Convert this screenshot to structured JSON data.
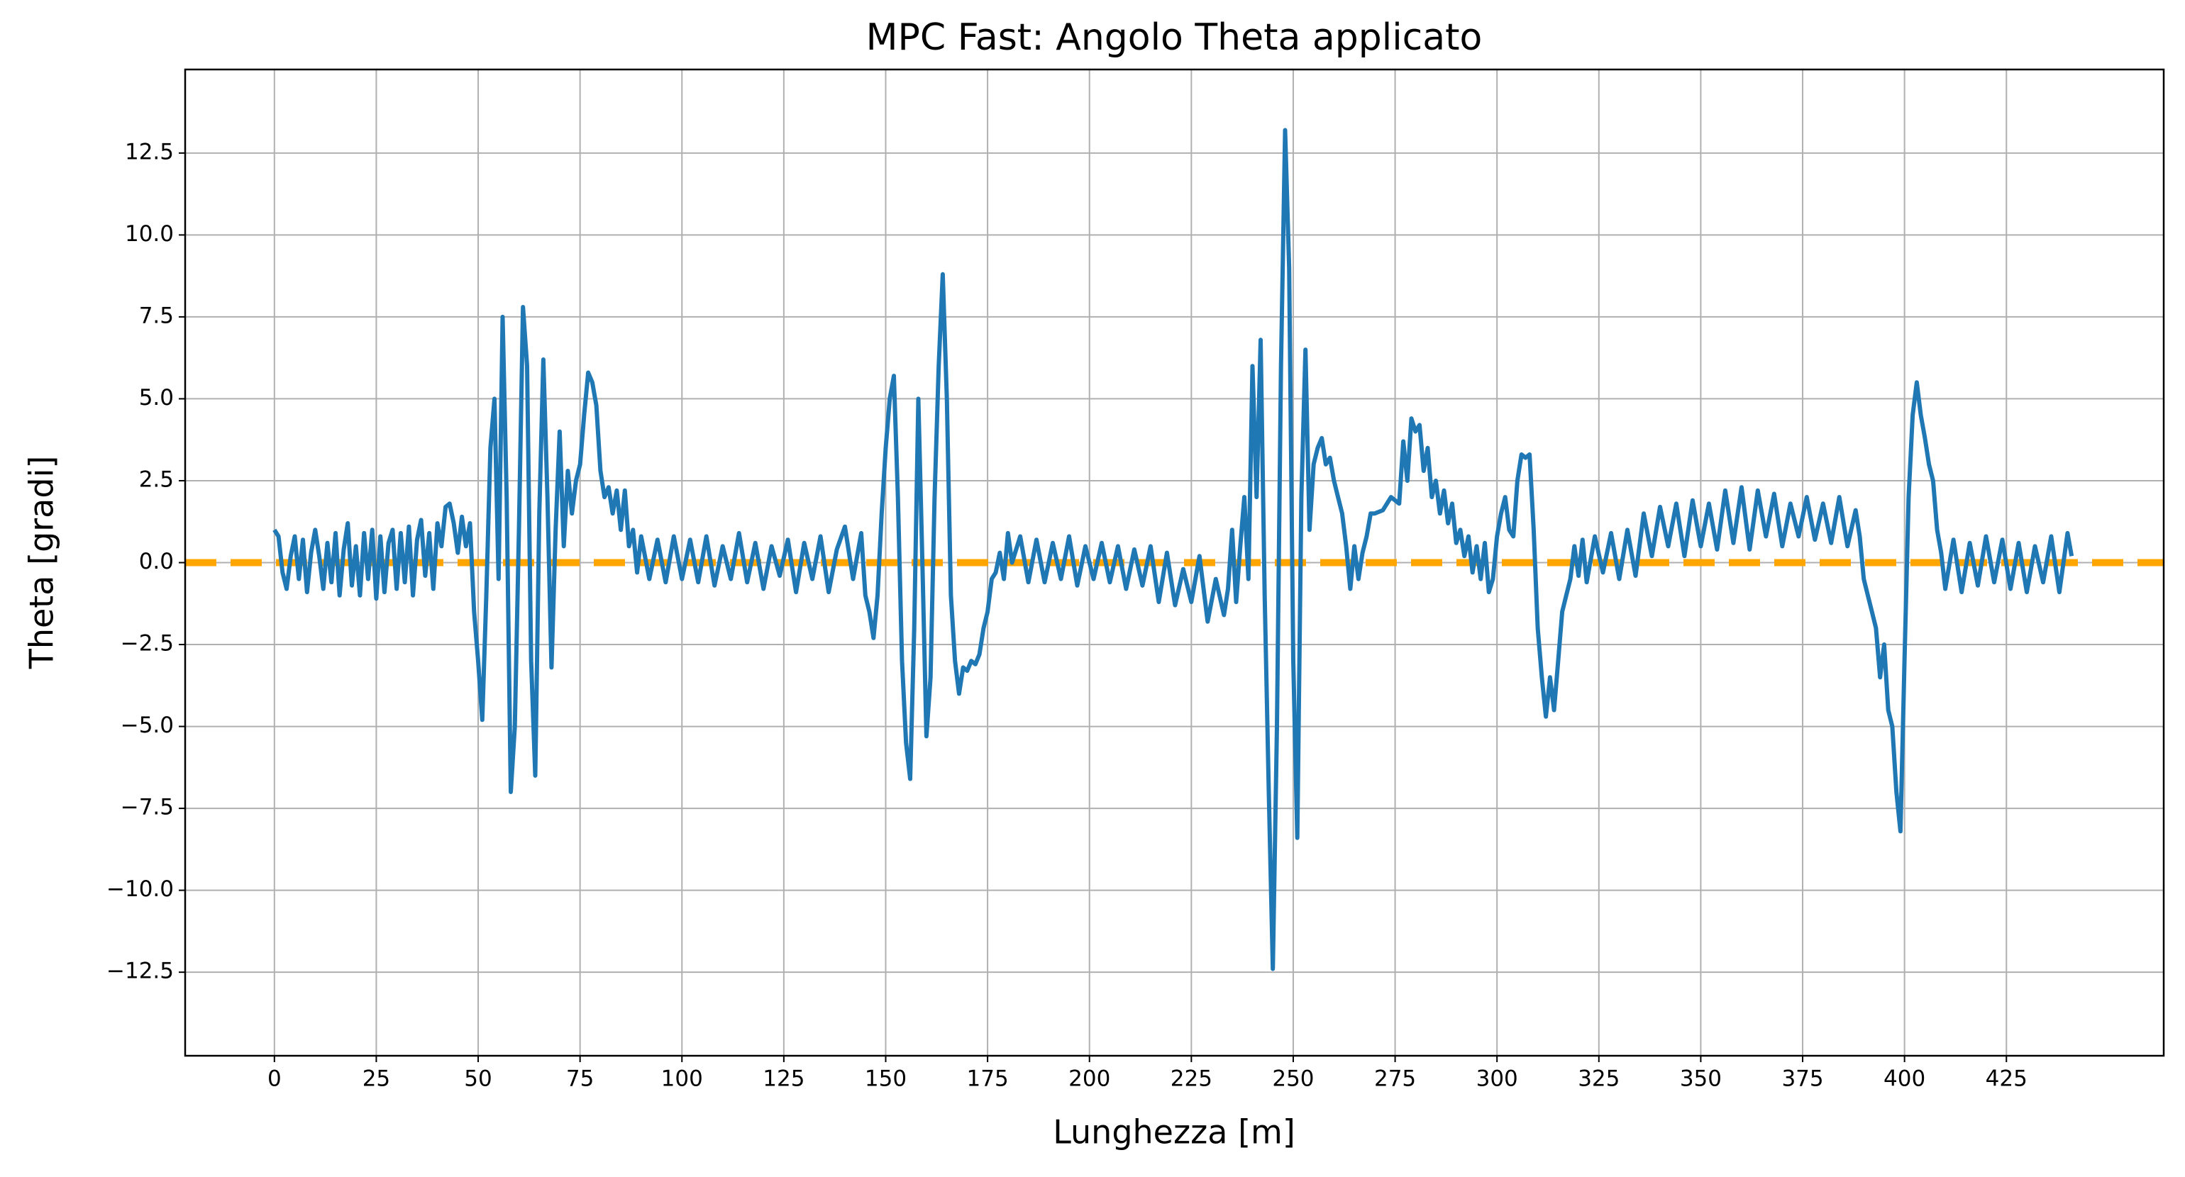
{
  "chart_data": {
    "type": "line",
    "title": "MPC Fast: Angolo Theta applicato",
    "xlabel": "Lunghezza [m]",
    "ylabel": "Theta [gradi]",
    "x": [
      0,
      1,
      2,
      3,
      4,
      5,
      6,
      7,
      8,
      9,
      10,
      11,
      12,
      13,
      14,
      15,
      16,
      17,
      18,
      19,
      20,
      21,
      22,
      23,
      24,
      25,
      26,
      27,
      28,
      29,
      30,
      31,
      32,
      33,
      34,
      35,
      36,
      37,
      38,
      39,
      40,
      41,
      42,
      43,
      44,
      45,
      46,
      47,
      48,
      49,
      50,
      51,
      52,
      53,
      54,
      55,
      56,
      57,
      58,
      59,
      60,
      61,
      62,
      63,
      64,
      65,
      66,
      67,
      68,
      69,
      70,
      71,
      72,
      73,
      74,
      75,
      76,
      77,
      78,
      79,
      80,
      81,
      82,
      83,
      84,
      85,
      86,
      87,
      88,
      89,
      90,
      92,
      94,
      96,
      98,
      100,
      102,
      104,
      106,
      108,
      110,
      112,
      114,
      116,
      118,
      120,
      122,
      124,
      126,
      128,
      130,
      132,
      134,
      136,
      138,
      140,
      142,
      144,
      145,
      146,
      147,
      148,
      149,
      150,
      151,
      152,
      153,
      154,
      155,
      156,
      157,
      158,
      159,
      160,
      161,
      162,
      163,
      164,
      165,
      166,
      167,
      168,
      169,
      170,
      171,
      172,
      173,
      174,
      175,
      176,
      177,
      178,
      179,
      180,
      181,
      183,
      185,
      187,
      189,
      191,
      193,
      195,
      197,
      199,
      201,
      203,
      205,
      207,
      209,
      211,
      213,
      215,
      217,
      219,
      221,
      223,
      225,
      227,
      229,
      231,
      233,
      234,
      235,
      236,
      237,
      238,
      239,
      240,
      241,
      242,
      243,
      244,
      245,
      246,
      247,
      248,
      249,
      250,
      251,
      252,
      253,
      254,
      255,
      256,
      257,
      258,
      259,
      260,
      261,
      262,
      263,
      264,
      265,
      266,
      267,
      268,
      269,
      270,
      272,
      274,
      276,
      277,
      278,
      279,
      280,
      281,
      282,
      283,
      284,
      285,
      286,
      287,
      288,
      289,
      290,
      291,
      292,
      293,
      294,
      295,
      296,
      297,
      298,
      299,
      300,
      301,
      302,
      303,
      304,
      305,
      306,
      307,
      308,
      309,
      310,
      311,
      312,
      313,
      314,
      315,
      316,
      317,
      318,
      319,
      320,
      321,
      322,
      324,
      326,
      328,
      330,
      332,
      334,
      336,
      338,
      340,
      342,
      344,
      346,
      348,
      350,
      352,
      354,
      356,
      358,
      360,
      362,
      364,
      366,
      368,
      370,
      372,
      374,
      376,
      378,
      380,
      382,
      384,
      386,
      388,
      389,
      390,
      391,
      392,
      393,
      394,
      395,
      396,
      397,
      398,
      399,
      400,
      401,
      402,
      403,
      404,
      405,
      406,
      407,
      408,
      409,
      410,
      412,
      414,
      416,
      418,
      420,
      422,
      424,
      426,
      428,
      430,
      432,
      434,
      436,
      438,
      440,
      441
    ],
    "series": [
      {
        "color": "#1f77b4",
        "values": [
          1.0,
          0.8,
          -0.3,
          -0.8,
          0.2,
          0.8,
          -0.5,
          0.7,
          -0.9,
          0.3,
          1.0,
          0.2,
          -0.8,
          0.6,
          -0.6,
          0.9,
          -1.0,
          0.4,
          1.2,
          -0.7,
          0.5,
          -1.0,
          0.9,
          -0.5,
          1.0,
          -1.1,
          0.8,
          -0.9,
          0.6,
          1.0,
          -0.8,
          0.9,
          -0.6,
          1.1,
          -1.0,
          0.7,
          1.3,
          -0.4,
          0.9,
          -0.8,
          1.2,
          0.5,
          1.7,
          1.8,
          1.2,
          0.3,
          1.4,
          0.5,
          1.2,
          -1.5,
          -3.0,
          -4.8,
          -1.0,
          3.5,
          5.0,
          -0.5,
          7.5,
          2.0,
          -7.0,
          -5.0,
          1.0,
          7.8,
          6.0,
          -3.0,
          -6.5,
          1.5,
          6.2,
          2.0,
          -3.2,
          1.0,
          4.0,
          0.5,
          2.8,
          1.5,
          2.5,
          3.0,
          4.5,
          5.8,
          5.5,
          4.8,
          2.8,
          2.0,
          2.3,
          1.5,
          2.2,
          1.0,
          2.2,
          0.5,
          1.0,
          -0.3,
          0.8,
          -0.5,
          0.7,
          -0.6,
          0.8,
          -0.5,
          0.7,
          -0.6,
          0.8,
          -0.7,
          0.5,
          -0.5,
          0.9,
          -0.6,
          0.6,
          -0.8,
          0.5,
          -0.4,
          0.7,
          -0.9,
          0.6,
          -0.5,
          0.8,
          -0.9,
          0.4,
          1.1,
          -0.5,
          0.9,
          -1.0,
          -1.5,
          -2.3,
          -1.0,
          1.5,
          3.5,
          5.0,
          5.7,
          2.0,
          -3.0,
          -5.5,
          -6.6,
          -2.0,
          5.0,
          0.0,
          -5.3,
          -3.5,
          2.0,
          6.0,
          8.8,
          5.0,
          -1.0,
          -3.0,
          -4.0,
          -3.2,
          -3.3,
          -3.0,
          -3.1,
          -2.8,
          -2.0,
          -1.5,
          -0.5,
          -0.3,
          0.3,
          -0.5,
          0.9,
          0.0,
          0.8,
          -0.6,
          0.7,
          -0.6,
          0.6,
          -0.5,
          0.8,
          -0.7,
          0.5,
          -0.5,
          0.6,
          -0.6,
          0.5,
          -0.8,
          0.4,
          -0.7,
          0.5,
          -1.2,
          0.3,
          -1.3,
          -0.2,
          -1.2,
          0.2,
          -1.8,
          -0.5,
          -1.6,
          -0.8,
          1.0,
          -1.2,
          0.5,
          2.0,
          -0.5,
          6.0,
          2.0,
          6.8,
          -1.0,
          -7.0,
          -12.4,
          -5.0,
          6.0,
          13.2,
          9.0,
          -3.0,
          -8.4,
          2.0,
          6.5,
          1.0,
          3.0,
          3.5,
          3.8,
          3.0,
          3.2,
          2.5,
          2.0,
          1.5,
          0.5,
          -0.8,
          0.5,
          -0.5,
          0.3,
          0.8,
          1.5,
          1.5,
          1.6,
          2.0,
          1.8,
          3.7,
          2.5,
          4.4,
          4.0,
          4.2,
          2.8,
          3.5,
          2.0,
          2.5,
          1.5,
          2.2,
          1.2,
          1.8,
          0.6,
          1.0,
          0.2,
          0.8,
          -0.3,
          0.5,
          -0.5,
          0.6,
          -0.9,
          -0.5,
          0.8,
          1.5,
          2.0,
          1.0,
          0.8,
          2.5,
          3.3,
          3.2,
          3.3,
          1.0,
          -2.0,
          -3.5,
          -4.7,
          -3.5,
          -4.5,
          -3.0,
          -1.5,
          -1.0,
          -0.5,
          0.5,
          -0.4,
          0.7,
          -0.6,
          0.8,
          -0.3,
          0.9,
          -0.5,
          1.0,
          -0.4,
          1.5,
          0.2,
          1.7,
          0.5,
          1.8,
          0.2,
          1.9,
          0.5,
          1.8,
          0.4,
          2.2,
          0.6,
          2.3,
          0.4,
          2.2,
          0.8,
          2.1,
          0.5,
          1.8,
          0.8,
          2.0,
          0.7,
          1.8,
          0.6,
          2.0,
          0.5,
          1.6,
          0.8,
          -0.5,
          -1.0,
          -1.5,
          -2.0,
          -3.5,
          -2.5,
          -4.5,
          -5.0,
          -7.0,
          -8.2,
          -3.0,
          2.0,
          4.5,
          5.5,
          4.5,
          3.8,
          3.0,
          2.5,
          1.0,
          0.3,
          -0.8,
          0.7,
          -0.9,
          0.6,
          -0.7,
          0.8,
          -0.6,
          0.7,
          -0.8,
          0.6,
          -0.9,
          0.5,
          -0.6,
          0.8,
          -0.9,
          0.9,
          0.2
        ]
      }
    ],
    "hline": {
      "value": 0,
      "color": "#ffa500"
    },
    "xlim": [
      -21.9,
      463.6
    ],
    "ylim": [
      -15.05,
      15.05
    ],
    "xticks": [
      0,
      25,
      50,
      75,
      100,
      125,
      150,
      175,
      200,
      225,
      250,
      275,
      300,
      325,
      350,
      375,
      400,
      425
    ],
    "yticks": [
      {
        "value": -12.5,
        "label": "−12.5"
      },
      {
        "value": -10,
        "label": "−10.0"
      },
      {
        "value": -7.5,
        "label": "−7.5"
      },
      {
        "value": -5,
        "label": "−5.0"
      },
      {
        "value": -2.5,
        "label": "−2.5"
      },
      {
        "value": 0,
        "label": "0.0"
      },
      {
        "value": 2.5,
        "label": "2.5"
      },
      {
        "value": 5,
        "label": "5.0"
      },
      {
        "value": 7.5,
        "label": "7.5"
      },
      {
        "value": 10,
        "label": "10.0"
      },
      {
        "value": 12.5,
        "label": "12.5"
      }
    ],
    "grid": true
  }
}
